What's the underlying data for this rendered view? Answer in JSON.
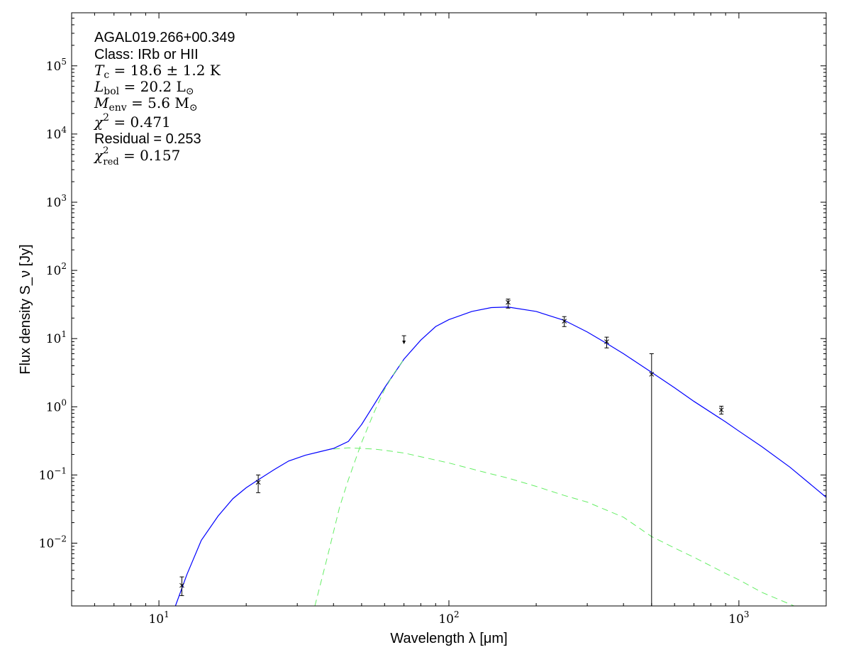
{
  "chart_data": {
    "type": "scatter",
    "xlabel": "Wavelength λ [μm]",
    "ylabel": "Flux density S_ν [Jy]",
    "xscale": "log",
    "yscale": "log",
    "xlim": [
      5,
      2000
    ],
    "ylim": [
      0.0012,
      600000
    ],
    "x_ticks": [
      {
        "value": 10,
        "base": "10",
        "exp": "1"
      },
      {
        "value": 100,
        "base": "10",
        "exp": "2"
      },
      {
        "value": 1000,
        "base": "10",
        "exp": "3"
      }
    ],
    "y_ticks": [
      {
        "value": 0.01,
        "base": "10",
        "exp": "−2"
      },
      {
        "value": 0.1,
        "base": "10",
        "exp": "−1"
      },
      {
        "value": 1,
        "base": "10",
        "exp": "0"
      },
      {
        "value": 10,
        "base": "10",
        "exp": "1"
      },
      {
        "value": 100,
        "base": "10",
        "exp": "2"
      },
      {
        "value": 1000,
        "base": "10",
        "exp": "3"
      },
      {
        "value": 10000,
        "base": "10",
        "exp": "4"
      },
      {
        "value": 100000,
        "base": "10",
        "exp": "5"
      }
    ],
    "annotations": {
      "source": "AGAL019.266+00.349",
      "class": "Class: IRb or HII",
      "tc": {
        "symbol": "T",
        "sub": "c",
        "text": " = 18.6 ± 1.2 K"
      },
      "lbol": {
        "symbol": "L",
        "sub": "bol",
        "text": " = 20.2 L",
        "sun": "⊙"
      },
      "menv": {
        "symbol": "M",
        "sub": "env",
        "text": " = 5.6 M",
        "sun": "⊙"
      },
      "chi2": {
        "symbol": "χ",
        "sup": "2",
        "text": " = 0.471"
      },
      "residual": "Residual = 0.253",
      "chi2red": {
        "symbol": "χ",
        "sup": "2",
        "sub": "red",
        "text": " = 0.157"
      }
    },
    "measurements": [
      {
        "x": 12,
        "y": 0.0024,
        "err_lo": 0.0017,
        "err_hi": 0.0032
      },
      {
        "x": 22,
        "y": 0.078,
        "err_lo": 0.055,
        "err_hi": 0.1
      },
      {
        "x": 70,
        "y": 10.5,
        "upper_limit": true
      },
      {
        "x": 160,
        "y": 34,
        "err_lo": 28,
        "err_hi": 38
      },
      {
        "x": 250,
        "y": 18,
        "err_lo": 15,
        "err_hi": 21
      },
      {
        "x": 350,
        "y": 9,
        "err_lo": 7.3,
        "err_hi": 10.5
      },
      {
        "x": 500,
        "y": 3,
        "err_lo": 0.001,
        "err_hi": 6
      },
      {
        "x": 870,
        "y": 0.9,
        "err_lo": 0.78,
        "err_hi": 1.02
      }
    ],
    "series": [
      {
        "style": "solid",
        "color": "#0000ff",
        "x": [
          11.4,
          12.5,
          14,
          16,
          18,
          20,
          22,
          25,
          28,
          32,
          36,
          40,
          45,
          50,
          55,
          60,
          70,
          80,
          90,
          100,
          120,
          140,
          160,
          200,
          250,
          300,
          350,
          400,
          500,
          600,
          700,
          900,
          1000,
          1200,
          1500,
          2000
        ],
        "y": [
          0.0012,
          0.0035,
          0.011,
          0.025,
          0.045,
          0.065,
          0.085,
          0.12,
          0.16,
          0.195,
          0.22,
          0.245,
          0.31,
          0.55,
          1.05,
          1.9,
          5.0,
          9.5,
          15,
          19,
          25,
          28.5,
          29,
          25,
          18.5,
          12.5,
          8.5,
          6,
          3.2,
          1.9,
          1.2,
          0.6,
          0.44,
          0.26,
          0.13,
          0.047
        ]
      },
      {
        "style": "dashed",
        "color": "#66ee66",
        "x": [
          34.5,
          38,
          42,
          45,
          50,
          55,
          60,
          65,
          70
        ],
        "y": [
          0.0012,
          0.006,
          0.034,
          0.085,
          0.3,
          0.8,
          1.8,
          3.2,
          5.0
        ]
      },
      {
        "style": "dashed",
        "color": "#66ee66",
        "x": [
          40,
          45,
          50,
          55,
          60,
          70,
          80,
          100,
          130,
          160,
          200,
          250,
          300,
          400,
          500,
          600,
          700,
          900,
          1000,
          1200,
          1550
        ],
        "y": [
          0.24,
          0.25,
          0.245,
          0.24,
          0.23,
          0.21,
          0.185,
          0.15,
          0.112,
          0.09,
          0.068,
          0.05,
          0.04,
          0.024,
          0.0125,
          0.0085,
          0.0062,
          0.0036,
          0.0029,
          0.0019,
          0.0012
        ]
      }
    ]
  }
}
